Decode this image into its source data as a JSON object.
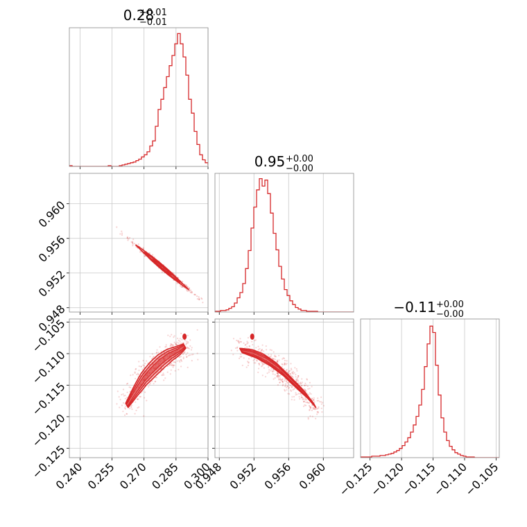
{
  "chart_data": {
    "type": "corner",
    "color": "#d62728",
    "grid": true,
    "panels": [
      {
        "kind": "hist",
        "param_index": 0,
        "title": {
          "value": "0.28",
          "plus": "+0.01",
          "minus": "−0.01"
        },
        "xlim": [
          0.235,
          0.3
        ],
        "bins": {
          "start": 0.235,
          "width": 0.0013,
          "counts": [
            1,
            0,
            0,
            0,
            0,
            0,
            0,
            0,
            0,
            0,
            0,
            0,
            0,
            0,
            1,
            0,
            0,
            0,
            1,
            2,
            3,
            4,
            5,
            6,
            8,
            10,
            13,
            16,
            20,
            28,
            35,
            55,
            78,
            92,
            108,
            123,
            138,
            152,
            168,
            182,
            168,
            150,
            125,
            92,
            73,
            48,
            30,
            16,
            9,
            5,
            2,
            1
          ]
        },
        "ylim": [
          0,
          190
        ]
      },
      {
        "kind": "hist",
        "param_index": 1,
        "title": {
          "value": "0.95",
          "plus": "+0.00",
          "minus": "−0.00"
        },
        "xlim": [
          0.9475,
          0.9635
        ],
        "bins": {
          "start": 0.9475,
          "width": 0.00032,
          "counts": [
            1,
            1,
            2,
            2,
            3,
            5,
            7,
            12,
            19,
            26,
            38,
            58,
            82,
            112,
            140,
            163,
            178,
            168,
            176,
            158,
            132,
            105,
            83,
            61,
            44,
            30,
            22,
            15,
            10,
            6,
            4,
            2,
            2,
            1,
            1,
            1,
            1,
            0,
            0,
            0,
            0,
            0,
            0,
            0,
            0,
            0,
            0,
            0,
            0,
            0
          ]
        },
        "ylim": [
          0,
          185
        ]
      },
      {
        "kind": "hist",
        "param_index": 2,
        "title": {
          "value": "−0.11",
          "plus": "+0.00",
          "minus": "−0.00"
        },
        "xlim": [
          -0.1265,
          -0.1045
        ],
        "bins": {
          "start": -0.1265,
          "width": 0.00044,
          "counts": [
            1,
            1,
            1,
            1,
            2,
            2,
            2,
            3,
            3,
            4,
            5,
            6,
            8,
            10,
            13,
            17,
            22,
            28,
            36,
            46,
            58,
            74,
            96,
            128,
            160,
            185,
            176,
            130,
            88,
            56,
            36,
            24,
            16,
            11,
            7,
            5,
            3,
            2,
            1,
            1,
            1,
            0,
            0,
            0,
            0,
            0,
            0,
            0,
            0,
            0
          ]
        },
        "ylim": [
          0,
          195
        ]
      },
      {
        "kind": "contour",
        "x_index": 0,
        "y_index": 1,
        "xlim": [
          0.235,
          0.3
        ],
        "ylim": [
          0.9475,
          0.9635
        ],
        "yticks": [
          0.948,
          0.952,
          0.956,
          0.96
        ],
        "yticklabels": [
          "0.948",
          "0.952",
          "0.956",
          "0.960"
        ],
        "relation": {
          "slope": -0.208,
          "intercept": 1.0106
        },
        "scatter_range": {
          "x": [
            0.246,
            0.3
          ]
        },
        "core_range": {
          "x": [
            0.268,
            0.288
          ]
        }
      },
      {
        "kind": "contour",
        "x_index": 0,
        "y_index": 2,
        "xlim": [
          0.235,
          0.3
        ],
        "ylim": [
          -0.1265,
          -0.1045
        ],
        "yticks": [
          -0.125,
          -0.12,
          -0.115,
          -0.11,
          -0.105
        ],
        "yticklabels": [
          "−0.125",
          "−0.120",
          "−0.115",
          "−0.110",
          "−0.105"
        ],
        "xticks": [
          0.24,
          0.255,
          0.27,
          0.285,
          0.3
        ],
        "xticklabels": [
          "0.240",
          "0.255",
          "0.270",
          "0.285",
          "0.300"
        ]
      },
      {
        "kind": "contour",
        "x_index": 1,
        "y_index": 2,
        "xlim": [
          0.9475,
          0.9635
        ],
        "ylim": [
          -0.1265,
          -0.1045
        ],
        "xticks": [
          0.948,
          0.952,
          0.956,
          0.96
        ],
        "xticklabels": [
          "0.948",
          "0.952",
          "0.956",
          "0.960"
        ]
      }
    ],
    "hist_xticks": {
      "bottom": {
        "panel": 2,
        "ticks": [
          -0.125,
          -0.12,
          -0.115,
          -0.11,
          -0.105
        ],
        "labels": [
          "−0.125",
          "−0.120",
          "−0.115",
          "−0.110",
          "−0.105"
        ]
      }
    },
    "tracks": {
      "x0_y2": {
        "points": [
          [
            0.262,
            -0.1182
          ],
          [
            0.266,
            -0.116
          ],
          [
            0.27,
            -0.114
          ],
          [
            0.274,
            -0.1125
          ],
          [
            0.278,
            -0.1112
          ],
          [
            0.282,
            -0.1102
          ],
          [
            0.286,
            -0.1095
          ],
          [
            0.289,
            -0.1088
          ]
        ],
        "outlier": [
          0.289,
          -0.1073
        ]
      },
      "x1_y2": {
        "points": [
          [
            0.9505,
            -0.1095
          ],
          [
            0.952,
            -0.11
          ],
          [
            0.9535,
            -0.111
          ],
          [
            0.955,
            -0.1125
          ],
          [
            0.9565,
            -0.1145
          ],
          [
            0.958,
            -0.1165
          ],
          [
            0.959,
            -0.1182
          ]
        ],
        "outlier": [
          0.9518,
          -0.1073
        ]
      }
    }
  }
}
